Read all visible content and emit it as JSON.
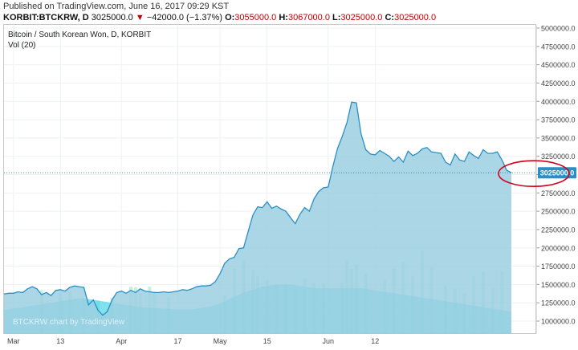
{
  "header": {
    "published": "Published on TradingView.com, June 16, 2017 09:29 KST",
    "symbol": "KORBIT:BTCKRW, D",
    "last": "3025000.0",
    "change_arrow": "▼",
    "change": "−42000.0 (−1.37%)",
    "open_label": "O:",
    "open": "3055000.0",
    "high_label": "H:",
    "high": "3067000.0",
    "low_label": "L:",
    "low": "3025000.0",
    "close_label": "C:",
    "close": "3025000.0"
  },
  "legend": {
    "title": "Bitcoin / South Korean Won, D, KORBIT",
    "vol": "Vol (20)"
  },
  "watermark": "BTCKRW chart by TradingView",
  "colors": {
    "price_line": "#2a8fc6",
    "price_fill": "#9ccfe0",
    "volume_fill": "#57d7e8",
    "volume_ma": "#38c6e0",
    "last_price_bg": "#2a8fc6",
    "highlight_ellipse": "#d0021b"
  },
  "chart_data": {
    "type": "area",
    "ylim": [
      900000,
      5100000
    ],
    "y_ticks": [
      "5000000.0",
      "4750000.0",
      "4500000.0",
      "4250000.0",
      "4000000.0",
      "3750000.0",
      "3500000.0",
      "3250000.0",
      "3000000.0",
      "2750000.0",
      "2500000.0",
      "2250000.0",
      "2000000.0",
      "1750000.0",
      "1500000.0",
      "1250000.0",
      "1000000.0"
    ],
    "last_price_label": "3025000.0",
    "last_price": 3025000,
    "x_ticks": [
      "Mar",
      "13",
      "Apr",
      "17",
      "May",
      "15",
      "Jun",
      "12"
    ],
    "x_tick_index": [
      2,
      12,
      25,
      37,
      46,
      56,
      69,
      79
    ],
    "series": [
      {
        "name": "BTCKRW",
        "values": [
          1370000,
          1380000,
          1380000,
          1400000,
          1390000,
          1440000,
          1470000,
          1440000,
          1360000,
          1390000,
          1350000,
          1420000,
          1430000,
          1410000,
          1460000,
          1480000,
          1470000,
          1460000,
          1220000,
          1290000,
          1150000,
          1080000,
          1130000,
          1290000,
          1390000,
          1410000,
          1380000,
          1420000,
          1390000,
          1440000,
          1410000,
          1400000,
          1390000,
          1390000,
          1400000,
          1390000,
          1400000,
          1410000,
          1430000,
          1420000,
          1440000,
          1470000,
          1480000,
          1480000,
          1490000,
          1540000,
          1650000,
          1790000,
          1850000,
          1870000,
          1990000,
          2000000,
          2230000,
          2450000,
          2560000,
          2550000,
          2630000,
          2540000,
          2570000,
          2530000,
          2500000,
          2410000,
          2330000,
          2460000,
          2550000,
          2500000,
          2670000,
          2770000,
          2820000,
          2830000,
          3110000,
          3360000,
          3520000,
          3710000,
          3990000,
          3980000,
          3560000,
          3340000,
          3280000,
          3270000,
          3330000,
          3290000,
          3250000,
          3180000,
          3240000,
          3170000,
          3320000,
          3260000,
          3290000,
          3350000,
          3370000,
          3310000,
          3300000,
          3290000,
          3170000,
          3130000,
          3280000,
          3200000,
          3180000,
          3310000,
          3260000,
          3220000,
          3340000,
          3290000,
          3290000,
          3310000,
          3200000,
          3060000,
          3025000
        ]
      }
    ],
    "volume_ma": {
      "name": "Vol (20)",
      "values": [
        1150000,
        1160000,
        1170000,
        1180000,
        1190000,
        1200000,
        1210000,
        1220000,
        1230000,
        1240000,
        1250000,
        1260000,
        1270000,
        1280000,
        1290000,
        1300000,
        1310000,
        1310000,
        1300000,
        1290000,
        1280000,
        1270000,
        1260000,
        1250000,
        1240000,
        1230000,
        1220000,
        1210000,
        1200000,
        1195000,
        1190000,
        1185000,
        1180000,
        1175000,
        1170000,
        1165000,
        1160000,
        1160000,
        1160000,
        1160000,
        1160000,
        1170000,
        1180000,
        1190000,
        1200000,
        1220000,
        1240000,
        1270000,
        1300000,
        1330000,
        1360000,
        1390000,
        1410000,
        1430000,
        1450000,
        1470000,
        1480000,
        1490000,
        1500000,
        1500000,
        1500000,
        1500000,
        1490000,
        1480000,
        1470000,
        1460000,
        1450000,
        1450000,
        1450000,
        1450000,
        1450000,
        1450000,
        1450000,
        1450000,
        1450000,
        1450000,
        1450000,
        1440000,
        1430000,
        1420000,
        1410000,
        1400000,
        1390000,
        1380000,
        1370000,
        1360000,
        1350000,
        1340000,
        1330000,
        1320000,
        1310000,
        1300000,
        1290000,
        1280000,
        1270000,
        1260000,
        1250000,
        1240000,
        1230000,
        1220000,
        1210000,
        1200000,
        1190000,
        1180000,
        1170000,
        1160000,
        1150000,
        1140000,
        1130000
      ]
    },
    "volume_bars": [
      {
        "i": 8,
        "v": 1420000
      },
      {
        "i": 12,
        "v": 1390000
      },
      {
        "i": 14,
        "v": 1400000
      },
      {
        "i": 17,
        "v": 1310000
      },
      {
        "i": 20,
        "v": 1280000
      },
      {
        "i": 23,
        "v": 1320000
      },
      {
        "i": 27,
        "v": 1470000
      },
      {
        "i": 28,
        "v": 1460000
      },
      {
        "i": 29,
        "v": 1380000
      },
      {
        "i": 31,
        "v": 1470000
      },
      {
        "i": 32,
        "v": 1400000
      },
      {
        "i": 35,
        "v": 1330000
      },
      {
        "i": 47,
        "v": 1350000
      },
      {
        "i": 49,
        "v": 1720000
      },
      {
        "i": 51,
        "v": 1830000
      },
      {
        "i": 53,
        "v": 1700000
      },
      {
        "i": 54,
        "v": 1620000
      },
      {
        "i": 56,
        "v": 1560000
      },
      {
        "i": 58,
        "v": 1490000
      },
      {
        "i": 60,
        "v": 1510000
      },
      {
        "i": 62,
        "v": 1430000
      },
      {
        "i": 64,
        "v": 1580000
      },
      {
        "i": 66,
        "v": 1520000
      },
      {
        "i": 68,
        "v": 1510000
      },
      {
        "i": 72,
        "v": 1530000
      },
      {
        "i": 73,
        "v": 1830000
      },
      {
        "i": 74,
        "v": 1710000
      },
      {
        "i": 75,
        "v": 1770000
      },
      {
        "i": 77,
        "v": 1640000
      },
      {
        "i": 81,
        "v": 1560000
      },
      {
        "i": 83,
        "v": 1720000
      },
      {
        "i": 85,
        "v": 1800000
      },
      {
        "i": 87,
        "v": 1610000
      },
      {
        "i": 89,
        "v": 1960000
      },
      {
        "i": 91,
        "v": 1740000
      },
      {
        "i": 94,
        "v": 1480000
      },
      {
        "i": 96,
        "v": 1440000
      },
      {
        "i": 98,
        "v": 1380000
      },
      {
        "i": 100,
        "v": 1620000
      },
      {
        "i": 102,
        "v": 1670000
      },
      {
        "i": 104,
        "v": 1450000
      },
      {
        "i": 106,
        "v": 1690000
      }
    ],
    "grid": true,
    "legend": "top-left"
  }
}
